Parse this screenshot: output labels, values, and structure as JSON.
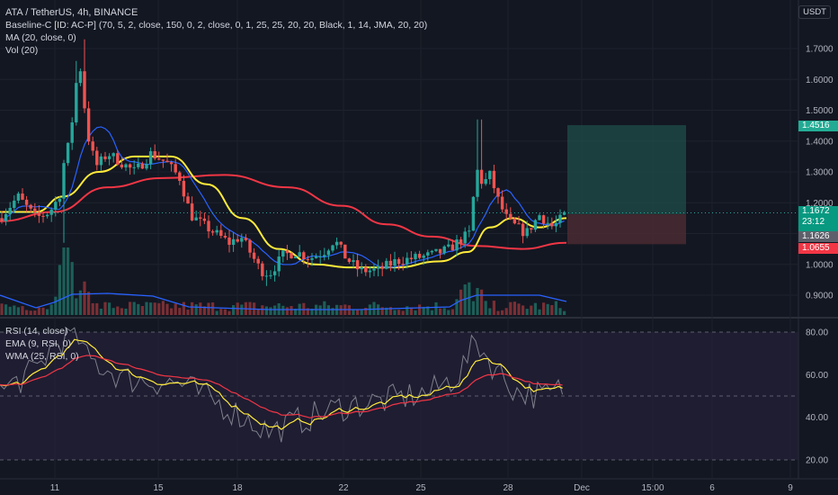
{
  "header": {
    "symbol": "ATA / TetherUS, 4h, BINANCE",
    "currency": "USDT"
  },
  "indicators": {
    "baseline": "Baseline-C [ID: AC-P] (70, 5, 2, close, 150, 0, 2, close, 0, 1, 25, 25, 20, 20, Black, 1, 14, JMA, 20, 20)",
    "ma": "MA (20, close, 0)",
    "vol": "Vol (20)",
    "rsi": "RSI (14, close)",
    "ema": "EMA (9, RSI, 0)",
    "wma": "WMA (25, RSI, 0)"
  },
  "price_axis": {
    "ticks": [
      "1.7000",
      "1.6000",
      "1.5000",
      "1.4000",
      "1.3000",
      "1.2000",
      "1.1000",
      "1.0000",
      "0.9000"
    ]
  },
  "price_tags": {
    "target": "1.4516",
    "last_price": "1.1672",
    "countdown": "23:12",
    "entry": "1.1626",
    "stop": "1.0655"
  },
  "rsi_axis": {
    "ticks": [
      "80.00",
      "60.00",
      "40.00",
      "20.00"
    ]
  },
  "time_axis": {
    "ticks": [
      "11",
      "15",
      "18",
      "22",
      "25",
      "28",
      "Dec",
      "15:00",
      "6",
      "9"
    ]
  },
  "colors": {
    "background": "#131722",
    "up": "#26a69a",
    "down": "#ef5350",
    "ma": "#2962ff",
    "baseline_slow": "#f23645",
    "baseline_fast": "#ffeb3b",
    "target_zone": "#1f4d4a",
    "stop_zone": "#4a2a31",
    "rsi_band": "#2a2340"
  },
  "chart_data": {
    "type": "candlestick",
    "ohlc_keyframes": {
      "days": [
        "11",
        "15",
        "18",
        "22",
        "25",
        "28",
        "Dec"
      ],
      "approx_close_by_day": [
        1.16,
        1.36,
        1.13,
        1.0,
        1.0,
        1.26,
        1.16
      ]
    },
    "spike_high": 1.73,
    "spike_low": 0.93,
    "ylim": [
      0.86,
      1.78
    ],
    "position": {
      "entry": 1.1626,
      "target": 1.4516,
      "stop": 1.0655
    },
    "rsi": {
      "ylim": [
        15,
        85
      ],
      "levels": [
        80,
        50,
        20
      ]
    }
  }
}
